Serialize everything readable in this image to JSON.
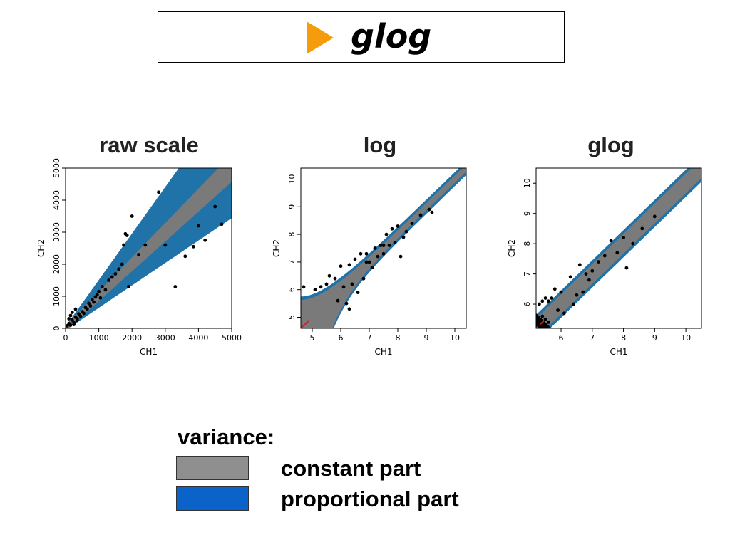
{
  "slide": {
    "title": "glog"
  },
  "colors": {
    "arrow": "#f59c0c",
    "constant": "#7a7a7a",
    "proportional": "#1f73a8",
    "legend_constant": "#8f8f8f",
    "legend_proportional": "#0b63c9",
    "points": "#000000",
    "diagonal": "#d42020"
  },
  "chart_data": [
    {
      "type": "scatter",
      "title": "raw scale",
      "xlabel": "CH1",
      "ylabel": "CH2",
      "xlim": [
        0,
        5000
      ],
      "ylim": [
        0,
        5000
      ],
      "xticks": [
        0,
        1000,
        2000,
        3000,
        4000,
        5000
      ],
      "yticks": [
        0,
        1000,
        2000,
        3000,
        4000,
        5000
      ],
      "band_type": "raw",
      "points": [
        [
          50,
          80
        ],
        [
          100,
          150
        ],
        [
          150,
          100
        ],
        [
          200,
          260
        ],
        [
          250,
          180
        ],
        [
          300,
          350
        ],
        [
          350,
          300
        ],
        [
          400,
          450
        ],
        [
          450,
          380
        ],
        [
          500,
          520
        ],
        [
          550,
          470
        ],
        [
          600,
          650
        ],
        [
          650,
          600
        ],
        [
          700,
          780
        ],
        [
          750,
          700
        ],
        [
          800,
          900
        ],
        [
          850,
          820
        ],
        [
          900,
          980
        ],
        [
          950,
          1050
        ],
        [
          1000,
          1150
        ],
        [
          1050,
          950
        ],
        [
          1100,
          1300
        ],
        [
          1200,
          1200
        ],
        [
          1300,
          1500
        ],
        [
          1400,
          1600
        ],
        [
          1500,
          1700
        ],
        [
          1600,
          1850
        ],
        [
          1700,
          2000
        ],
        [
          1750,
          2600
        ],
        [
          1800,
          2950
        ],
        [
          1850,
          2900
        ],
        [
          1900,
          1300
        ],
        [
          2000,
          3500
        ],
        [
          2200,
          2300
        ],
        [
          2400,
          2600
        ],
        [
          2800,
          4250
        ],
        [
          3000,
          2600
        ],
        [
          3300,
          1300
        ],
        [
          3600,
          2250
        ],
        [
          3850,
          2550
        ],
        [
          4000,
          3200
        ],
        [
          4200,
          2750
        ],
        [
          4500,
          3800
        ],
        [
          4700,
          3250
        ],
        [
          150,
          400
        ],
        [
          200,
          500
        ],
        [
          100,
          300
        ],
        [
          250,
          120
        ],
        [
          300,
          600
        ],
        [
          350,
          250
        ]
      ]
    },
    {
      "type": "scatter",
      "title": "log",
      "xlabel": "CH1",
      "ylabel": "CH2",
      "xlim": [
        4.6,
        10.4
      ],
      "ylim": [
        4.6,
        10.4
      ],
      "xticks": [
        5,
        6,
        7,
        8,
        9,
        10
      ],
      "yticks": [
        5,
        6,
        7,
        8,
        9,
        10
      ],
      "band_type": "log",
      "points": [
        [
          4.7,
          6.1
        ],
        [
          5.1,
          6.0
        ],
        [
          5.3,
          6.1
        ],
        [
          5.6,
          6.5
        ],
        [
          5.8,
          6.4
        ],
        [
          5.9,
          5.6
        ],
        [
          6.0,
          6.85
        ],
        [
          6.1,
          6.1
        ],
        [
          6.2,
          5.5
        ],
        [
          6.3,
          6.9
        ],
        [
          6.4,
          6.2
        ],
        [
          6.5,
          7.1
        ],
        [
          6.6,
          5.9
        ],
        [
          6.7,
          7.3
        ],
        [
          6.8,
          6.4
        ],
        [
          6.9,
          7.3
        ],
        [
          7.0,
          7.0
        ],
        [
          7.1,
          6.8
        ],
        [
          7.2,
          7.5
        ],
        [
          7.3,
          7.2
        ],
        [
          7.4,
          7.6
        ],
        [
          7.5,
          7.3
        ],
        [
          7.6,
          8.0
        ],
        [
          7.7,
          7.6
        ],
        [
          7.8,
          8.2
        ],
        [
          7.9,
          7.7
        ],
        [
          8.0,
          8.3
        ],
        [
          8.1,
          7.2
        ],
        [
          8.2,
          7.9
        ],
        [
          8.3,
          8.1
        ],
        [
          8.5,
          8.4
        ],
        [
          8.8,
          8.7
        ],
        [
          9.1,
          8.9
        ],
        [
          9.2,
          8.8
        ],
        [
          6.3,
          5.3
        ],
        [
          5.5,
          6.2
        ],
        [
          6.9,
          7.0
        ],
        [
          7.5,
          7.6
        ]
      ]
    },
    {
      "type": "scatter",
      "title": "glog",
      "xlabel": "CH1",
      "ylabel": "CH2",
      "xlim": [
        5.2,
        10.5
      ],
      "ylim": [
        5.2,
        10.5
      ],
      "xticks": [
        6,
        7,
        8,
        9,
        10
      ],
      "yticks": [
        6,
        7,
        8,
        9,
        10
      ],
      "band_type": "glog",
      "points": [
        [
          5.3,
          6.0
        ],
        [
          5.4,
          6.1
        ],
        [
          5.5,
          6.2
        ],
        [
          5.6,
          6.1
        ],
        [
          5.7,
          6.2
        ],
        [
          5.8,
          6.5
        ],
        [
          5.9,
          5.8
        ],
        [
          6.0,
          6.4
        ],
        [
          6.1,
          5.7
        ],
        [
          6.3,
          6.9
        ],
        [
          6.4,
          6.0
        ],
        [
          6.5,
          6.3
        ],
        [
          6.6,
          7.3
        ],
        [
          6.7,
          6.4
        ],
        [
          6.8,
          7.0
        ],
        [
          6.9,
          6.8
        ],
        [
          7.0,
          7.1
        ],
        [
          7.2,
          7.4
        ],
        [
          7.4,
          7.6
        ],
        [
          7.6,
          8.1
        ],
        [
          7.8,
          7.7
        ],
        [
          8.0,
          8.2
        ],
        [
          8.1,
          7.2
        ],
        [
          8.3,
          8.0
        ],
        [
          8.6,
          8.5
        ],
        [
          9.0,
          8.9
        ],
        [
          5.3,
          5.3
        ],
        [
          5.5,
          5.5
        ],
        [
          5.6,
          5.4
        ],
        [
          5.4,
          5.6
        ]
      ]
    }
  ],
  "legend": {
    "heading": "variance:",
    "items": [
      {
        "label": "constant part"
      },
      {
        "label": "proportional part"
      }
    ]
  }
}
